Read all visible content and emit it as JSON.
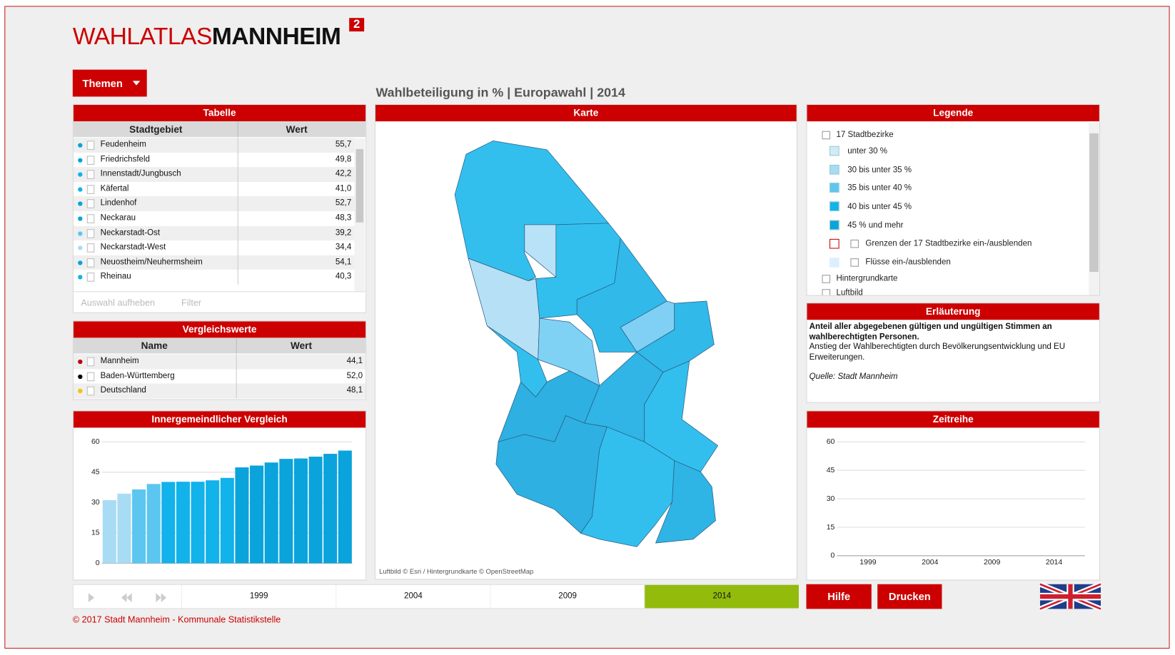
{
  "header": {
    "logo_left": "WAHLATLAS",
    "logo_right": "MANNHEIM",
    "logo_sup": "2"
  },
  "menu": {
    "label": "Themen"
  },
  "page_title": "Wahlbeteiligung in % | Europawahl | 2014",
  "table": {
    "title": "Tabelle",
    "columns": [
      "Stadtgebiet",
      "Wert"
    ],
    "rows": [
      [
        "Feudenheim",
        "55,7"
      ],
      [
        "Friedrichsfeld",
        "49,8"
      ],
      [
        "Innenstadt/Jungbusch",
        "42,2"
      ],
      [
        "Käfertal",
        "41,0"
      ],
      [
        "Lindenhof",
        "52,7"
      ],
      [
        "Neckarau",
        "48,3"
      ],
      [
        "Neckarstadt-Ost",
        "39,2"
      ],
      [
        "Neckarstadt-West",
        "34,4"
      ],
      [
        "Neuostheim/Neuhermsheim",
        "54,1"
      ],
      [
        "Rheinau",
        "40,3"
      ]
    ],
    "row_colors": [
      "#0aa3dc",
      "#0aa3dc",
      "#12b2ea",
      "#12b2ea",
      "#0aa3dc",
      "#0aa3dc",
      "#5cc6f0",
      "#a8dcf4",
      "#0aa3dc",
      "#12b2ea"
    ],
    "actions": [
      "Auswahl aufheben",
      "Filter"
    ]
  },
  "comparison": {
    "title": "Vergleichswerte",
    "columns": [
      "Name",
      "Wert"
    ],
    "rows": [
      [
        "Mannheim",
        "44,1"
      ],
      [
        "Baden-Württemberg",
        "52,0"
      ],
      [
        "Deutschland",
        "48,1"
      ]
    ],
    "row_colors": [
      "#c00000",
      "#000000",
      "#f2c200"
    ]
  },
  "map": {
    "title": "Karte",
    "attribution": "Luftbild © Esri / Hintergrundkarte © OpenStreetMap"
  },
  "legend": {
    "title": "Legende",
    "group": "17 Stadtbezirke",
    "classes": [
      {
        "label": "unter 30 %",
        "color": "#d2ebf9"
      },
      {
        "label": "30 bis unter 35 %",
        "color": "#a8dcf4"
      },
      {
        "label": "35 bis unter 40 %",
        "color": "#5cc6f0"
      },
      {
        "label": "40 bis unter 45 %",
        "color": "#12b2ea"
      },
      {
        "label": "45 % und mehr",
        "color": "#0aa3dc"
      }
    ],
    "toggles": [
      {
        "label": "Grenzen der 17 Stadtbezirke ein-/ausblenden",
        "color": "#d00000"
      },
      {
        "label": "Flüsse ein-/ausblenden",
        "color": "#dcefff"
      }
    ],
    "layers": [
      "Hintergrundkarte",
      "Luftbild"
    ]
  },
  "explanation": {
    "title": "Erläuterung",
    "bold": "Anteil aller abgegebenen gültigen und ungültigen Stimmen an wahlberechtigten Personen.",
    "text": "Anstieg der Wahlberechtigten durch Bevölkerungsentwicklung und EU Erweiterungen.",
    "source": "Quelle: Stadt Mannheim"
  },
  "chart_data": [
    {
      "type": "bar",
      "title": "Innergemeindlicher Vergleich",
      "values": [
        31.2,
        34.4,
        36.5,
        39.2,
        40.2,
        40.3,
        40.3,
        41.0,
        42.2,
        47.4,
        48.3,
        49.8,
        51.6,
        51.8,
        52.7,
        54.1,
        55.7
      ],
      "colors": [
        "#a8dcf4",
        "#a8dcf4",
        "#5cc6f0",
        "#5cc6f0",
        "#12b2ea",
        "#12b2ea",
        "#12b2ea",
        "#12b2ea",
        "#12b2ea",
        "#0aa3dc",
        "#0aa3dc",
        "#0aa3dc",
        "#0aa3dc",
        "#0aa3dc",
        "#0aa3dc",
        "#0aa3dc",
        "#0aa3dc"
      ],
      "ylim": [
        0,
        60
      ],
      "yticks": [
        0,
        15,
        30,
        45,
        60
      ],
      "grid": true
    },
    {
      "type": "line",
      "title": "Zeitreihe",
      "categories": [
        "1999",
        "2004",
        "2009",
        "2014"
      ],
      "ylim": [
        0,
        60
      ],
      "yticks": [
        0,
        15,
        30,
        45,
        60
      ],
      "grid": true
    }
  ],
  "timeline": {
    "years": [
      "1999",
      "2004",
      "2009",
      "2014"
    ],
    "selected": 3
  },
  "buttons": [
    "Hilfe",
    "Drucken"
  ],
  "footer": "© 2017 Stadt Mannheim - Kommunale Statistikstelle"
}
